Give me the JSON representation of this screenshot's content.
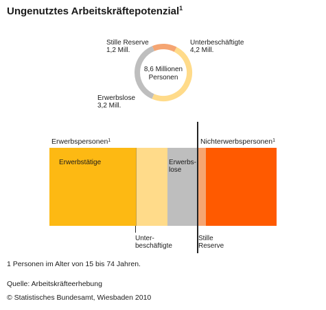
{
  "title": "Ungenutztes Arbeitskräftepotenzial",
  "title_sup": "1",
  "colors": {
    "stille_reserve": "#F5A572",
    "unterbeschaeftigte": "#FFDB8A",
    "erwerbslose": "#BEBEBE",
    "erwerbstaetige": "#FDB913",
    "nichterwerbspersonen": "#FF5A00"
  },
  "donut": {
    "center_line1": "8,6 Millionen",
    "center_line2": "Personen",
    "labels": {
      "stille_reserve": [
        "Stille Reserve",
        "1,2 Mill."
      ],
      "unterbeschaeftigte": [
        "Unterbeschäftigte",
        "4,2 Mill."
      ],
      "erwerbslose": [
        "Erwerbslose",
        "3,2 Mill."
      ]
    }
  },
  "bar": {
    "erwerbspersonen_label": "Erwerbspersonen",
    "nichterwerbspersonen_label": "Nichterwerbspersonen",
    "sup": "1",
    "erwerbstaetige": "Erwerbstätige",
    "erwerbslose_line1": "Erwerbs-",
    "erwerbslose_line2": "lose",
    "unter_line1": "Unter-",
    "unter_line2": "beschäftigte",
    "stille_line1": "Stille",
    "stille_line2": "Reserve"
  },
  "chart_data": {
    "type": "pie",
    "title": "Ungenutztes Arbeitskräftepotenzial",
    "total_label": "8,6 Millionen Personen",
    "unit": "Mill.",
    "categories": [
      "Stille Reserve",
      "Unterbeschäftigte",
      "Erwerbslose"
    ],
    "values": [
      1.2,
      4.2,
      3.2
    ]
  },
  "footnotes": {
    "note": "1 Personen im Alter von 15 bis 74 Jahren.",
    "source": "Quelle: Arbeitskräfteerhebung",
    "copyright": "© Statistisches Bundesamt, Wiesbaden 2010"
  }
}
